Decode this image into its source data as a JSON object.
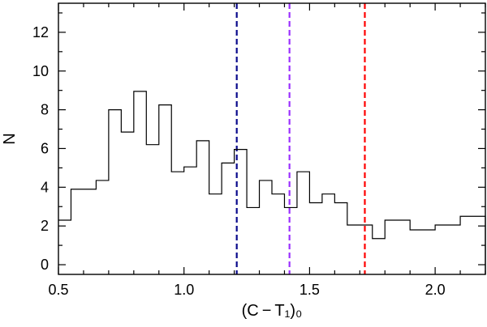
{
  "chart_data": {
    "type": "histogram",
    "xlabel": "(C − T₁)₀",
    "ylabel": "N",
    "xlim": [
      0.5,
      2.2
    ],
    "ylim": [
      -0.5,
      13.5
    ],
    "x_ticks": [
      {
        "value": 0.5,
        "label": "0.5"
      },
      {
        "value": 1.0,
        "label": "1.0"
      },
      {
        "value": 1.5,
        "label": "1.5"
      },
      {
        "value": 2.0,
        "label": "2.0"
      }
    ],
    "y_ticks": [
      {
        "value": 0,
        "label": "0"
      },
      {
        "value": 2,
        "label": "2"
      },
      {
        "value": 4,
        "label": "4"
      },
      {
        "value": 6,
        "label": "6"
      },
      {
        "value": 8,
        "label": "8"
      },
      {
        "value": 10,
        "label": "10"
      },
      {
        "value": 12,
        "label": "12"
      }
    ],
    "bin_edges": [
      0.5,
      0.55,
      0.65,
      0.7,
      0.75,
      0.8,
      0.85,
      0.9,
      0.95,
      1.0,
      1.05,
      1.1,
      1.15,
      1.2,
      1.25,
      1.3,
      1.35,
      1.4,
      1.45,
      1.5,
      1.55,
      1.6,
      1.65,
      1.75,
      1.8,
      1.85,
      1.9,
      2.0,
      2.1,
      2.2
    ],
    "counts": [
      2.3,
      3.9,
      4.35,
      8.0,
      6.85,
      8.95,
      6.2,
      8.25,
      4.8,
      5.05,
      6.4,
      3.65,
      5.25,
      5.95,
      2.95,
      4.35,
      3.65,
      2.95,
      4.8,
      3.2,
      3.65,
      3.2,
      2.05,
      1.35,
      2.3,
      2.3,
      1.8,
      2.05,
      2.5
    ],
    "vlines": [
      {
        "x": 1.21,
        "color": "#0a0a8c",
        "style": "dashed"
      },
      {
        "x": 1.42,
        "color": "#9b30ff",
        "style": "dashed"
      },
      {
        "x": 1.72,
        "color": "#ff0000",
        "style": "dashed"
      }
    ],
    "grid": false,
    "legend": "none"
  }
}
